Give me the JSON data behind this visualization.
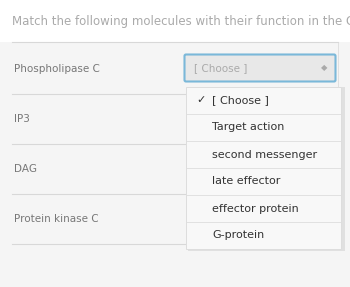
{
  "title": "Match the following molecules with their function in the Gq pathway.",
  "title_color": "#aaaaaa",
  "title_fontsize": 8.5,
  "bg_color": "#f0f0f0",
  "molecules": [
    "Phospholipase C",
    "IP3",
    "DAG",
    "Protein kinase C"
  ],
  "molecule_color": "#777777",
  "molecule_fontsize": 7.5,
  "divider_color": "#d8d8d8",
  "dropdown_text": "[ Choose ]",
  "dropdown_text_color": "#aaaaaa",
  "dropdown_fontsize": 7.5,
  "dropdown_bg": "#e8e8e8",
  "dropdown_border_color": "#7ab8d9",
  "popup_bg": "#f8f8f8",
  "popup_border_color": "#dddddd",
  "popup_options": [
    "[ Choose ]",
    "Target action",
    "second messenger",
    "late effector",
    "effector protein",
    "G-protein"
  ],
  "popup_check_color": "#333333",
  "popup_option_color": "#333333",
  "popup_fontsize": 8.0,
  "checkmark": "✓",
  "arrow_color": "#aaaaaa",
  "white": "#ffffff"
}
